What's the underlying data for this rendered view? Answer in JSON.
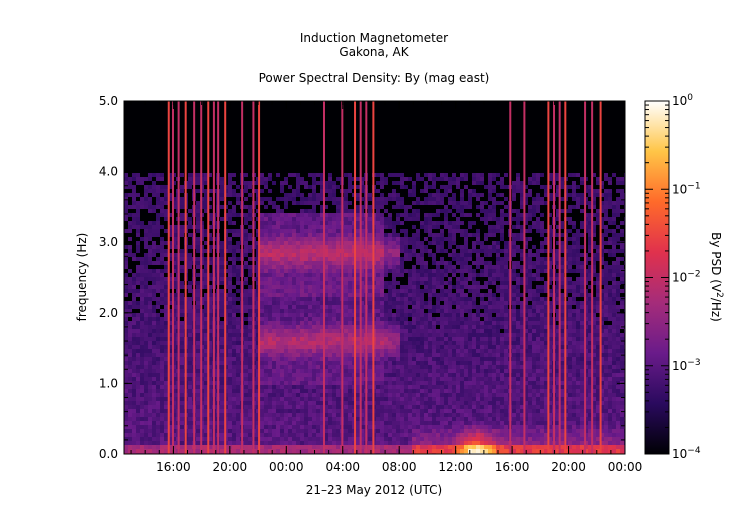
{
  "chart_data": {
    "type": "heatmap",
    "title": "Induction Magnetometer",
    "subtitle": "Gakona, AK",
    "plot_title": "Power Spectral Density: By (mag east)",
    "xlabel": "21–23 May 2012 (UTC)",
    "ylabel": "frequency (Hz)",
    "ylim": [
      0.0,
      5.0
    ],
    "y_ticks": [
      "0.0",
      "1.0",
      "2.0",
      "3.0",
      "4.0",
      "5.0"
    ],
    "y_tick_values": [
      0,
      1,
      2,
      3,
      4,
      5
    ],
    "x_ticks": [
      "16:00",
      "20:00",
      "00:00",
      "04:00",
      "08:00",
      "12:00",
      "16:00",
      "20:00",
      "00:00"
    ],
    "x_tick_hours": [
      16,
      20,
      24,
      28,
      32,
      36,
      40,
      44,
      48
    ],
    "x_range_hours": [
      12.5,
      48
    ],
    "colorbar": {
      "label_prefix": "By PSD (V",
      "label_sup": "2",
      "label_suffix": "/Hz)",
      "scale": "log",
      "range": [
        0.0001,
        1
      ],
      "tick_base": "10",
      "tick_exponents": [
        "0",
        "−1",
        "−2",
        "−3",
        "−4"
      ],
      "colormap": [
        "#000004",
        "#2a0a5e",
        "#6a1b8a",
        "#a52c7a",
        "#e0314d",
        "#ff6a2a",
        "#ffc547",
        "#ffffff"
      ]
    },
    "features": {
      "bands": [
        {
          "freq_hz": 2.85,
          "start_hour": 22.0,
          "end_hour": 32.0
        },
        {
          "freq_hz": 1.6,
          "start_hour": 22.0,
          "end_hour": 32.0
        }
      ],
      "low_freq_enhancement": {
        "start_hour": 33.0,
        "end_hour": 48.0,
        "peak_hour": 37.5
      },
      "vertical_lines_hours": [
        15.6,
        15.9,
        16.3,
        16.8,
        17.4,
        17.9,
        18.4,
        18.8,
        19.1,
        19.6,
        20.8,
        21.6,
        22.0,
        26.6,
        27.9,
        28.8,
        29.2,
        29.6,
        30.1,
        39.8,
        40.8,
        42.5,
        42.9,
        43.3,
        43.7,
        45.1,
        45.6,
        46.2
      ]
    }
  }
}
